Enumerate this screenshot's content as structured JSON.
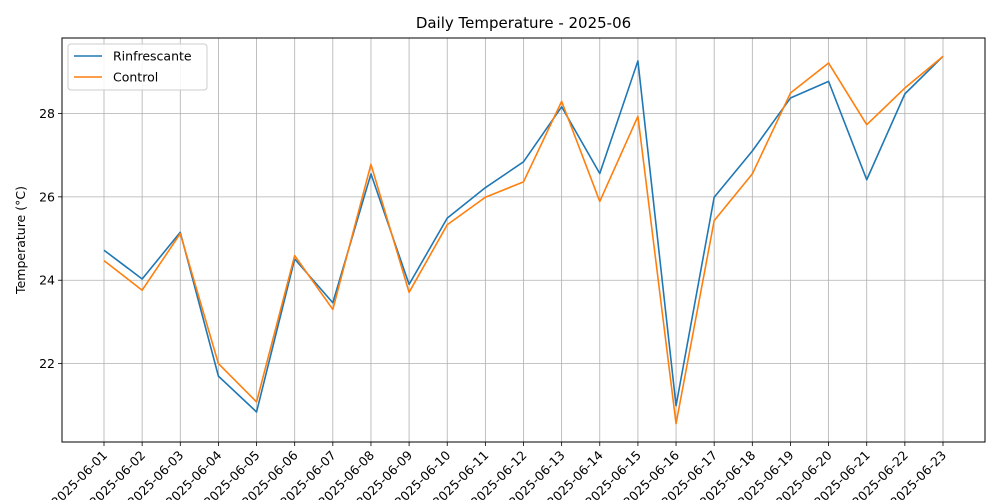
{
  "chart_data": {
    "type": "line",
    "title": "Daily Temperature - 2025-06",
    "xlabel": "",
    "ylabel": "Temperature (°C)",
    "x": [
      "2025-06-01",
      "2025-06-02",
      "2025-06-03",
      "2025-06-04",
      "2025-06-05",
      "2025-06-06",
      "2025-06-07",
      "2025-06-08",
      "2025-06-09",
      "2025-06-10",
      "2025-06-11",
      "2025-06-12",
      "2025-06-13",
      "2025-06-14",
      "2025-06-15",
      "2025-06-16",
      "2025-06-17",
      "2025-06-18",
      "2025-06-19",
      "2025-06-20",
      "2025-06-21",
      "2025-06-22",
      "2025-06-23"
    ],
    "series": [
      {
        "name": "Rinfrescante",
        "color": "#1f77b4",
        "values": [
          24.72,
          24.03,
          25.15,
          21.7,
          20.84,
          24.51,
          23.46,
          26.55,
          23.9,
          25.49,
          26.22,
          26.84,
          28.16,
          26.56,
          29.26,
          20.99,
          25.99,
          27.1,
          28.37,
          28.77,
          26.41,
          28.47,
          29.37
        ]
      },
      {
        "name": "Control",
        "color": "#ff7f0e",
        "values": [
          24.47,
          23.76,
          25.12,
          22.0,
          21.08,
          24.59,
          23.3,
          26.78,
          23.71,
          25.33,
          25.99,
          26.36,
          28.29,
          25.89,
          27.93,
          20.56,
          25.43,
          26.55,
          28.49,
          29.21,
          27.73,
          28.61,
          29.37
        ]
      }
    ],
    "yticks": [
      22,
      24,
      26,
      28
    ],
    "ylim": [
      20.12,
      29.81
    ],
    "grid": true,
    "legend_position": "upper-left"
  }
}
